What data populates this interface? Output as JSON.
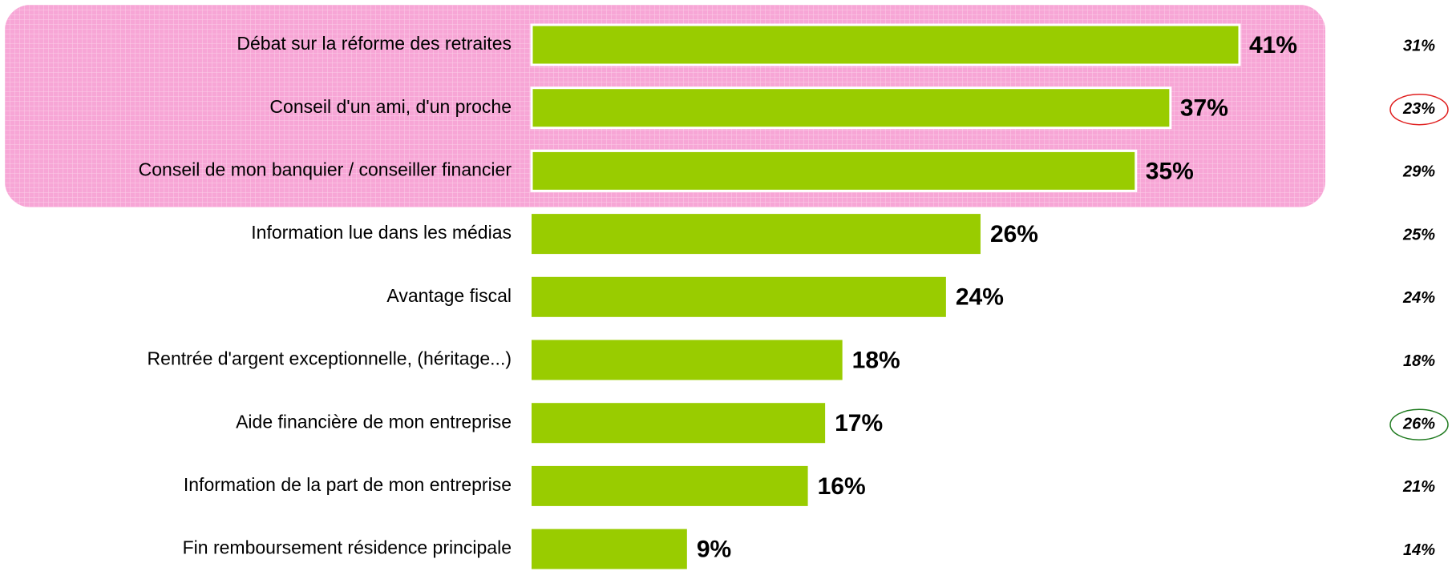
{
  "chart_data": {
    "type": "barh",
    "categories": [
      "Débat sur la réforme des retraites",
      "Conseil d'un ami, d'un proche",
      "Conseil de mon banquier / conseiller financier",
      "Information lue dans les médias",
      "Avantage fiscal",
      "Rentrée d'argent exceptionnelle, (héritage...)",
      "Aide financière de mon entreprise",
      "Information de la part de mon entreprise",
      "Fin remboursement résidence principale"
    ],
    "values": [
      41,
      37,
      35,
      26,
      24,
      18,
      17,
      16,
      9
    ],
    "value_labels": [
      "41%",
      "37%",
      "35%",
      "26%",
      "24%",
      "18%",
      "17%",
      "16%",
      "9%"
    ],
    "color": "#99cc00",
    "comparison": {
      "values": [
        31,
        23,
        29,
        25,
        24,
        18,
        26,
        21,
        14
      ],
      "value_labels": [
        "31%",
        "23%",
        "29%",
        "25%",
        "24%",
        "18%",
        "26%",
        "21%",
        "14%"
      ],
      "circled": [
        {
          "index": 1,
          "color": "#e02020"
        },
        {
          "index": 6,
          "color": "#1f7a1f"
        }
      ]
    },
    "highlight": {
      "rows": 3,
      "color": "#f7a6d6"
    }
  }
}
